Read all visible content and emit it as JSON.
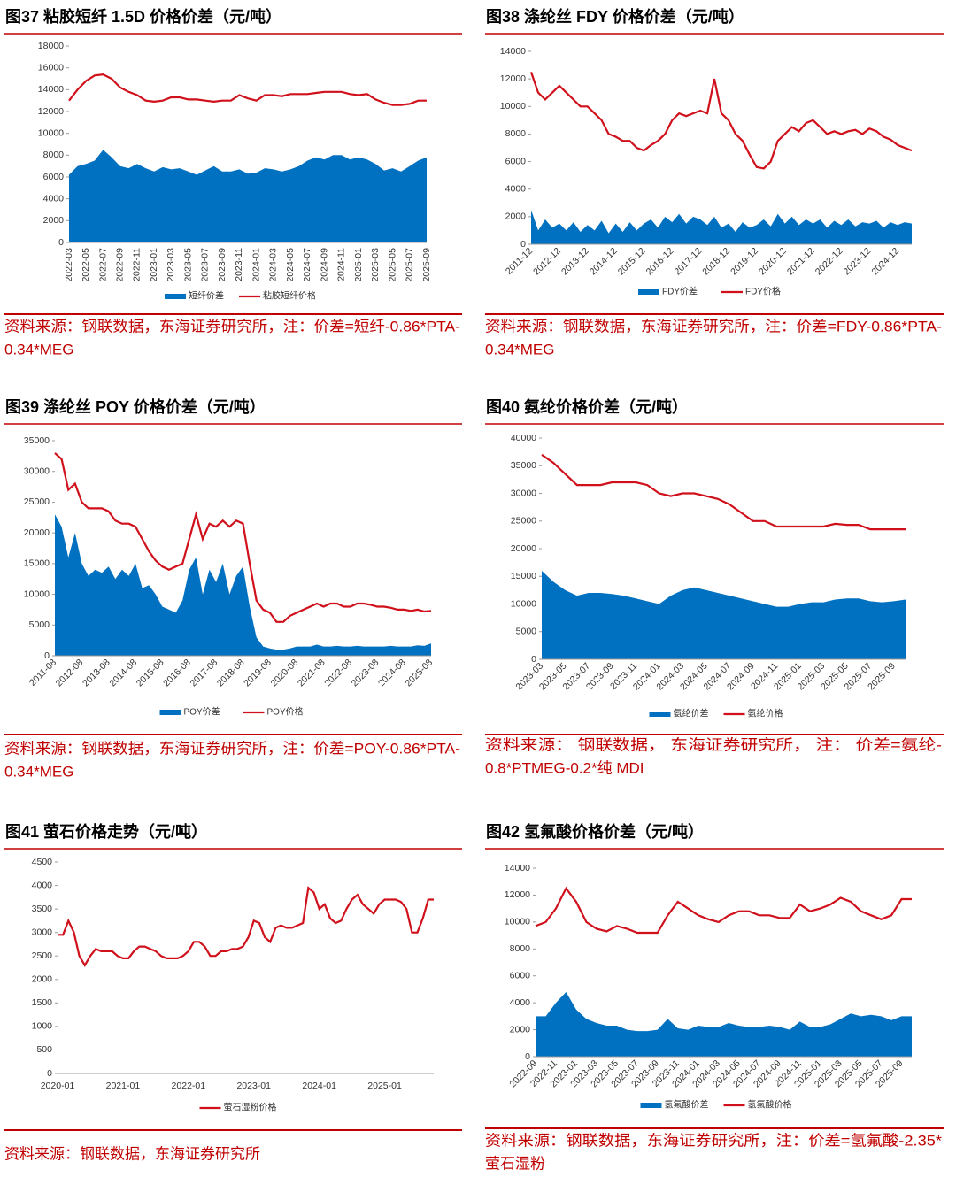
{
  "chart_data": [
    {
      "type": "line",
      "title": "图37  粘胶短纤 1.5D 价格价差（元/吨）",
      "note": [
        "资料来源：钢联数据，东海证券研究所，注：价差=短纤-0.86*PTA-",
        "0.34*MEG"
      ],
      "categories": [
        "2022-03",
        null,
        "2022-05",
        null,
        "2022-07",
        null,
        "2022-09",
        null,
        "2022-11",
        null,
        "2023-01",
        null,
        "2023-03",
        null,
        "2023-05",
        null,
        "2023-07",
        null,
        "2023-09",
        null,
        "2023-11",
        null,
        "2024-01",
        null,
        "2024-03",
        null,
        "2024-05",
        null,
        "2024-07",
        null,
        "2024-09",
        null,
        "2024-11",
        null,
        "2025-01",
        null,
        "2025-03",
        null,
        "2025-05",
        null,
        "2025-07",
        null,
        "2025-09"
      ],
      "series": [
        {
          "name": "短纤价差",
          "color": "#0070c0",
          "style": "area",
          "values": [
            6200,
            7000,
            7200,
            7500,
            8500,
            7800,
            7000,
            6800,
            7200,
            6800,
            6500,
            6900,
            6700,
            6800,
            6500,
            6200,
            6600,
            7000,
            6500,
            6500,
            6700,
            6300,
            6400,
            6800,
            6700,
            6500,
            6700,
            7000,
            7500,
            7800,
            7600,
            8000,
            8000,
            7600,
            7800,
            7600,
            7200,
            6600,
            6800,
            6500,
            7000,
            7500,
            7800
          ]
        },
        {
          "name": "粘胶短纤价格",
          "color": "#d0101b",
          "style": "line",
          "values": [
            13000,
            14000,
            14800,
            15300,
            15400,
            15000,
            14200,
            13800,
            13500,
            13000,
            12900,
            13000,
            13300,
            13300,
            13100,
            13100,
            13000,
            12900,
            13000,
            13000,
            13500,
            13200,
            13000,
            13500,
            13500,
            13400,
            13600,
            13600,
            13600,
            13700,
            13800,
            13800,
            13800,
            13600,
            13500,
            13600,
            13100,
            12800,
            12600,
            12600,
            12700,
            13000,
            13000
          ]
        }
      ],
      "ylim": [
        0,
        18000
      ],
      "yticks": [
        0,
        2000,
        4000,
        6000,
        8000,
        10000,
        12000,
        14000,
        16000,
        18000
      ]
    },
    {
      "type": "line",
      "title": "图38  涤纶丝 FDY 价格价差（元/吨）",
      "note": [
        "资料来源：钢联数据，东海证券研究所，注：价差=FDY-0.86*PTA-",
        "0.34*MEG"
      ],
      "categories": [
        "2011-12",
        null,
        null,
        null,
        "2012-12",
        null,
        null,
        null,
        "2013-12",
        null,
        null,
        null,
        "2014-12",
        null,
        null,
        null,
        "2015-12",
        null,
        null,
        null,
        "2016-12",
        null,
        null,
        null,
        "2017-12",
        null,
        null,
        null,
        "2018-12",
        null,
        null,
        null,
        "2019-12",
        null,
        null,
        null,
        "2020-12",
        null,
        null,
        null,
        "2021-12",
        null,
        null,
        null,
        "2022-12",
        null,
        null,
        null,
        "2023-12",
        null,
        null,
        null,
        "2024-12",
        null,
        null
      ],
      "series": [
        {
          "name": "FDY价差",
          "color": "#0070c0",
          "style": "area",
          "values": [
            2500,
            1000,
            1800,
            1200,
            1500,
            1000,
            1600,
            900,
            1400,
            1000,
            1700,
            800,
            1500,
            900,
            1600,
            1000,
            1500,
            1800,
            1200,
            2000,
            1600,
            2200,
            1500,
            2000,
            1800,
            1400,
            2000,
            1200,
            1500,
            900,
            1600,
            1200,
            1400,
            1800,
            1300,
            2200,
            1500,
            2000,
            1400,
            1800,
            1500,
            1800,
            1200,
            1700,
            1400,
            1800,
            1300,
            1600,
            1500,
            1700,
            1200,
            1600,
            1400,
            1600,
            1500
          ]
        },
        {
          "name": "FDY价格",
          "color": "#d0101b",
          "style": "line",
          "values": [
            12500,
            11000,
            10500,
            11000,
            11500,
            11000,
            10500,
            10000,
            10000,
            9500,
            9000,
            8000,
            7800,
            7500,
            7500,
            7000,
            6800,
            7200,
            7500,
            8000,
            9000,
            9500,
            9300,
            9500,
            9700,
            9500,
            12000,
            9500,
            9000,
            8000,
            7500,
            6500,
            5600,
            5500,
            6000,
            7500,
            8000,
            8500,
            8200,
            8800,
            9000,
            8500,
            8000,
            8200,
            8000,
            8200,
            8300,
            8000,
            8400,
            8200,
            7800,
            7600,
            7200,
            7000,
            6800
          ]
        }
      ],
      "ylim": [
        0,
        14000
      ],
      "yticks": [
        0,
        2000,
        4000,
        6000,
        8000,
        10000,
        12000,
        14000
      ]
    },
    {
      "type": "line",
      "title": "图39  涤纶丝 POY 价格价差（元/吨）",
      "note": [
        "资料来源：钢联数据，东海证券研究所，注：价差=POY-0.86*PTA-",
        "0.34*MEG"
      ],
      "categories": [
        "2011-08",
        null,
        null,
        null,
        "2012-08",
        null,
        null,
        null,
        "2013-08",
        null,
        null,
        null,
        "2014-08",
        null,
        null,
        null,
        "2015-08",
        null,
        null,
        null,
        "2016-08",
        null,
        null,
        null,
        "2017-08",
        null,
        null,
        null,
        "2018-08",
        null,
        null,
        null,
        "2019-08",
        null,
        null,
        null,
        "2020-08",
        null,
        null,
        null,
        "2021-08",
        null,
        null,
        null,
        "2022-08",
        null,
        null,
        null,
        "2023-08",
        null,
        null,
        null,
        "2024-08",
        null,
        null,
        null,
        "2025-08"
      ],
      "series": [
        {
          "name": "POY价差",
          "color": "#0070c0",
          "style": "area",
          "values": [
            23000,
            21000,
            16000,
            20000,
            15000,
            13000,
            14000,
            13500,
            14500,
            12500,
            14000,
            13000,
            15000,
            11000,
            11500,
            10000,
            8000,
            7500,
            7000,
            9000,
            14000,
            16000,
            10000,
            14000,
            12000,
            15000,
            10000,
            13000,
            14500,
            8000,
            3000,
            1500,
            1200,
            1000,
            1000,
            1200,
            1500,
            1500,
            1500,
            1800,
            1500,
            1500,
            1600,
            1500,
            1500,
            1600,
            1500,
            1500,
            1500,
            1500,
            1600,
            1500,
            1500,
            1500,
            1700,
            1600,
            2000
          ]
        },
        {
          "name": "POY价格",
          "color": "#d0101b",
          "style": "line",
          "values": [
            33000,
            32000,
            27000,
            28000,
            25000,
            24000,
            24000,
            24000,
            23500,
            22000,
            21500,
            21500,
            21000,
            19000,
            17000,
            15500,
            14500,
            14000,
            14500,
            15000,
            19000,
            23000,
            19000,
            21500,
            21000,
            22000,
            21000,
            22000,
            21500,
            15000,
            9000,
            7500,
            7000,
            5500,
            5500,
            6500,
            7000,
            7500,
            8000,
            8500,
            8000,
            8500,
            8500,
            8000,
            8000,
            8500,
            8500,
            8300,
            8000,
            8000,
            7800,
            7500,
            7500,
            7300,
            7500,
            7200,
            7300
          ]
        }
      ],
      "ylim": [
        0,
        35000
      ],
      "yticks": [
        0,
        5000,
        10000,
        15000,
        20000,
        25000,
        30000,
        35000
      ]
    },
    {
      "type": "line",
      "title": "图40  氨纶价格价差（元/吨）",
      "note": [
        "资料来源： 钢联数据， 东海证券研究所， 注： 价差=氨纶-",
        "0.8*PTMEG-0.2*纯 MDI"
      ],
      "categories": [
        "2023-03",
        null,
        "2023-05",
        null,
        "2023-07",
        null,
        "2023-09",
        null,
        "2023-11",
        null,
        "2024-01",
        null,
        "2024-03",
        null,
        "2024-05",
        null,
        "2024-07",
        null,
        "2024-09",
        null,
        "2024-11",
        null,
        "2025-01",
        null,
        "2025-03",
        null,
        "2025-05",
        null,
        "2025-07",
        null,
        "2025-09",
        null
      ],
      "series": [
        {
          "name": "氨纶价差",
          "color": "#0070c0",
          "style": "area",
          "values": [
            16000,
            14000,
            12500,
            11500,
            12000,
            12000,
            11800,
            11500,
            11000,
            10500,
            10000,
            11500,
            12500,
            13000,
            12500,
            12000,
            11500,
            11000,
            10500,
            10000,
            9500,
            9500,
            10000,
            10300,
            10300,
            10800,
            11000,
            11000,
            10500,
            10300,
            10500,
            10800
          ]
        },
        {
          "name": "氨纶价格",
          "color": "#d0101b",
          "style": "line",
          "values": [
            37000,
            35500,
            33500,
            31500,
            31500,
            31500,
            32000,
            32000,
            32000,
            31500,
            30000,
            29500,
            30000,
            30000,
            29500,
            29000,
            28000,
            26500,
            25000,
            25000,
            24000,
            24000,
            24000,
            24000,
            24000,
            24500,
            24300,
            24300,
            23500,
            23500,
            23500,
            23500
          ]
        }
      ],
      "ylim": [
        0,
        40000
      ],
      "yticks": [
        0,
        5000,
        10000,
        15000,
        20000,
        25000,
        30000,
        35000,
        40000
      ]
    },
    {
      "type": "line",
      "title": "图41  萤石价格走势（元/吨）",
      "note": [
        "资料来源：钢联数据，东海证券研究所"
      ],
      "categories": [
        "2020-01",
        null,
        null,
        null,
        null,
        null,
        null,
        null,
        null,
        null,
        null,
        null,
        "2021-01",
        null,
        null,
        null,
        null,
        null,
        null,
        null,
        null,
        null,
        null,
        null,
        "2022-01",
        null,
        null,
        null,
        null,
        null,
        null,
        null,
        null,
        null,
        null,
        null,
        "2023-01",
        null,
        null,
        null,
        null,
        null,
        null,
        null,
        null,
        null,
        null,
        null,
        "2024-01",
        null,
        null,
        null,
        null,
        null,
        null,
        null,
        null,
        null,
        null,
        null,
        "2025-01",
        null,
        null,
        null,
        null,
        null,
        null,
        null,
        null,
        null
      ],
      "series": [
        {
          "name": "萤石湿粉价格",
          "color": "#d0101b",
          "style": "line",
          "values": [
            2950,
            2950,
            3250,
            3000,
            2500,
            2300,
            2500,
            2650,
            2600,
            2600,
            2600,
            2500,
            2450,
            2450,
            2600,
            2700,
            2700,
            2650,
            2600,
            2500,
            2450,
            2450,
            2450,
            2500,
            2600,
            2800,
            2800,
            2700,
            2500,
            2500,
            2600,
            2600,
            2650,
            2650,
            2700,
            2900,
            3250,
            3200,
            2900,
            2800,
            3100,
            3150,
            3100,
            3100,
            3150,
            3200,
            3950,
            3850,
            3500,
            3600,
            3300,
            3200,
            3250,
            3500,
            3700,
            3800,
            3600,
            3500,
            3400,
            3600,
            3700,
            3700,
            3700,
            3650,
            3500,
            3000,
            3000,
            3300,
            3700,
            3700
          ]
        }
      ],
      "ylim": [
        0,
        4500
      ],
      "yticks": [
        0,
        500,
        1000,
        1500,
        2000,
        2500,
        3000,
        3500,
        4000,
        4500
      ]
    },
    {
      "type": "line",
      "title": "图42  氢氟酸价格价差（元/吨）",
      "note": [
        "资料来源：钢联数据，东海证券研究所，注：价差=氢氟酸-2.35*",
        "萤石湿粉"
      ],
      "categories": [
        "2022-09",
        null,
        "2022-11",
        null,
        "2023-01",
        null,
        "2023-03",
        null,
        "2023-05",
        null,
        "2023-07",
        null,
        "2023-09",
        null,
        "2023-11",
        null,
        "2024-01",
        null,
        "2024-03",
        null,
        "2024-05",
        null,
        "2024-07",
        null,
        "2024-09",
        null,
        "2024-11",
        null,
        "2025-01",
        null,
        "2025-03",
        null,
        "2025-05",
        null,
        "2025-07",
        null,
        "2025-09",
        null
      ],
      "series": [
        {
          "name": "氢氟酸价差",
          "color": "#0070c0",
          "style": "area",
          "values": [
            3000,
            3000,
            4000,
            4800,
            3500,
            2800,
            2500,
            2300,
            2300,
            2000,
            1900,
            1900,
            2000,
            2800,
            2100,
            2000,
            2300,
            2200,
            2200,
            2500,
            2300,
            2200,
            2200,
            2300,
            2200,
            2000,
            2600,
            2200,
            2200,
            2400,
            2800,
            3200,
            3000,
            3100,
            3000,
            2700,
            3000,
            3000
          ]
        },
        {
          "name": "氢氟酸价格",
          "color": "#d0101b",
          "style": "line",
          "values": [
            9700,
            10000,
            11000,
            12500,
            11500,
            10000,
            9500,
            9300,
            9700,
            9500,
            9200,
            9200,
            9200,
            10500,
            11500,
            11000,
            10500,
            10200,
            10000,
            10500,
            10800,
            10800,
            10500,
            10500,
            10300,
            10300,
            11300,
            10800,
            11000,
            11300,
            11800,
            11500,
            10800,
            10500,
            10200,
            10500,
            11700,
            11700
          ]
        }
      ],
      "ylim": [
        0,
        14000
      ],
      "yticks": [
        0,
        2000,
        4000,
        6000,
        8000,
        10000,
        12000,
        14000
      ]
    }
  ]
}
